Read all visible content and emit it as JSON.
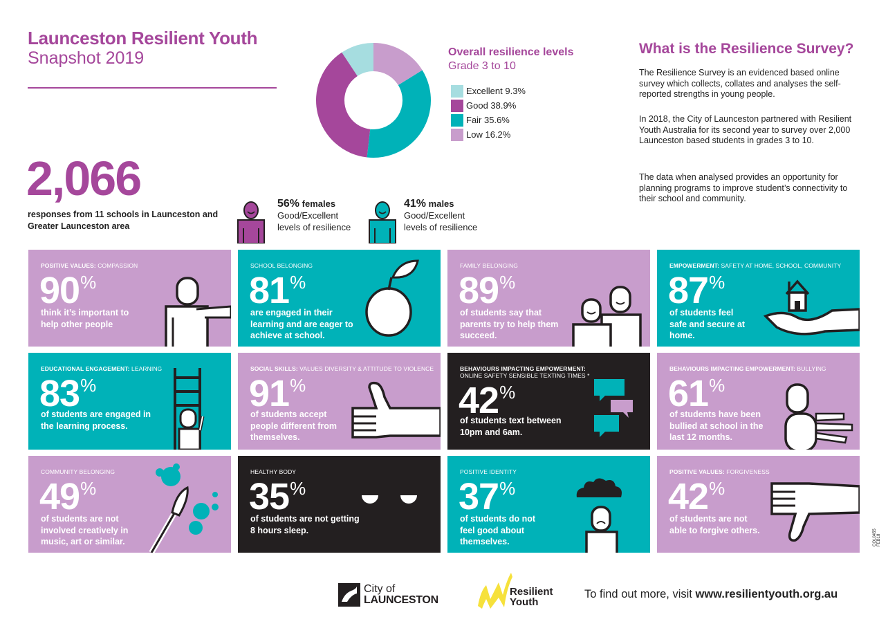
{
  "header": {
    "title": "Launceston Resilient Youth",
    "subtitle": "Snapshot 2019"
  },
  "chart_data": {
    "type": "pie",
    "title": "Overall resilience levels",
    "subtitle": "Grade 3 to 10",
    "categories": [
      "Excellent",
      "Good",
      "Fair",
      "Low"
    ],
    "values": [
      9.3,
      38.9,
      35.6,
      16.2
    ],
    "legend_labels": [
      "Excellent 9.3%",
      "Good 38.9%",
      "Fair 35.6%",
      "Low 16.2%"
    ],
    "colors": [
      "#a6dde0",
      "#a5479b",
      "#00b2b8",
      "#c89dcc"
    ],
    "legend_position": "right"
  },
  "responses": {
    "number": "2,066",
    "text": "responses from 11 schools in Launceston and Greater Launceston area"
  },
  "gender": {
    "female_pct": "56%",
    "female_label": "females",
    "female_text_1": "Good/Excellent",
    "female_text_2": "levels of resilience",
    "male_pct": "41%",
    "male_label": "males",
    "male_text_1": "Good/Excellent",
    "male_text_2": "levels of resilience"
  },
  "about": {
    "title": "What is the Resilience Survey?",
    "p1": "The Resilience Survey is an evidenced based online survey which collects, collates and analyses the self-reported strengths in young people.",
    "p2": "In 2018, the City of Launceston partnered with Resilient Youth Australia for its second year to survey over 2,000 Launceston based students in grades 3 to 10.",
    "p3": "The data when analysed provides an opportunity for planning programs to improve student’s connectivity to their school and community."
  },
  "tiles": [
    {
      "cat_bold": "POSITIVE VALUES:",
      "cat": " COMPASSION",
      "value": "90",
      "desc": "think it’s important to help other people"
    },
    {
      "cat_bold": "",
      "cat": "SCHOOL BELONGING",
      "value": "81",
      "desc": "are engaged in their learning and are eager to achieve at school."
    },
    {
      "cat_bold": "",
      "cat": "FAMILY BELONGING",
      "value": "89",
      "desc": "of students say that parents try to help them succeed."
    },
    {
      "cat_bold": "EMPOWERMENT:",
      "cat": " SAFETY AT HOME, SCHOOL, COMMUNITY",
      "value": "87",
      "desc": "of students feel safe and secure at home."
    },
    {
      "cat_bold": "EDUCATIONAL ENGAGEMENT:",
      "cat": " LEARNING",
      "value": "83",
      "desc": "of students are engaged in the learning process."
    },
    {
      "cat_bold": "SOCIAL SKILLS:",
      "cat": " VALUES DIVERSITY & ATTITUDE TO VIOLENCE",
      "value": "91",
      "desc": "of students accept people different from themselves."
    },
    {
      "cat_bold": "BEHAVIOURS IMPACTING EMPOWERMENT:",
      "cat": "ONLINE SAFETY SENSIBLE TEXTING TIMES *",
      "value": "42",
      "desc": "of students text between 10pm and 6am."
    },
    {
      "cat_bold": "BEHAVIOURS IMPACTING EMPOWERMENT:",
      "cat": " BULLYING",
      "value": "61",
      "desc": "of students have been bullied at school in the last 12 months."
    },
    {
      "cat_bold": "",
      "cat": "COMMUNITY BELONGING",
      "value": "49",
      "desc": "of students are not involved creatively in music, art or similar."
    },
    {
      "cat_bold": "",
      "cat": "HEALTHY BODY",
      "value": "35",
      "desc": "of students are not getting 8 hours sleep."
    },
    {
      "cat_bold": "",
      "cat": "POSITIVE IDENTITY",
      "value": "37",
      "desc": "of students do not feel good about themselves."
    },
    {
      "cat_bold": "POSITIVE VALUES:",
      "cat": " FORGIVENESS",
      "value": "42",
      "desc": "of students are not able to forgive others."
    }
  ],
  "percent_symbol": "%",
  "footer": {
    "logo1_line1": "City of",
    "logo1_line2": "LAUNCESTON",
    "logo2_line1": "Resilient",
    "logo2_line2": "Youth",
    "find_out": "To find out more, visit ",
    "url": "www.resilientyouth.org.au",
    "code": "COL0455 FEB18"
  }
}
